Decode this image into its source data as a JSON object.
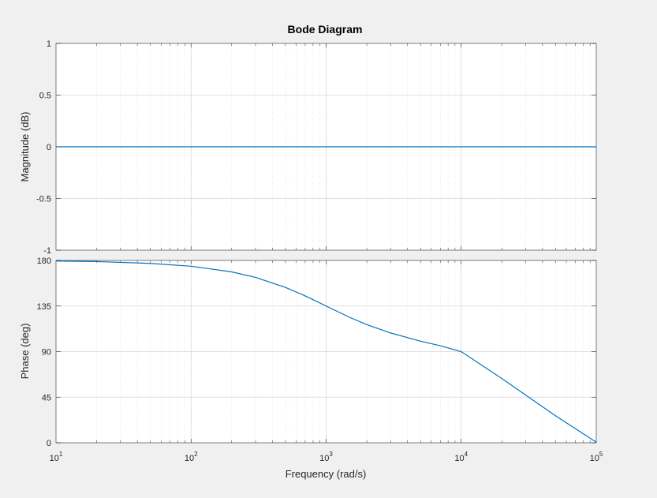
{
  "chart_data": {
    "type": "line",
    "title": "Bode Diagram",
    "xlabel": "Frequency  (rad/s)",
    "xscale": "log",
    "xlim": [
      10,
      100000
    ],
    "xticks": [
      {
        "base": "10",
        "exp": "1"
      },
      {
        "base": "10",
        "exp": "2"
      },
      {
        "base": "10",
        "exp": "3"
      },
      {
        "base": "10",
        "exp": "4"
      },
      {
        "base": "10",
        "exp": "5"
      }
    ],
    "grid": true,
    "line_color": "#0072bd",
    "subplots": [
      {
        "name": "magnitude",
        "ylabel": "Magnitude (dB)",
        "ylim": [
          -1,
          1
        ],
        "yticks": [
          "1",
          "0.5",
          "0",
          "-0.5",
          "-1"
        ],
        "series": {
          "x": [
            10,
            100,
            1000,
            10000,
            100000
          ],
          "y": [
            0,
            0,
            0,
            0,
            0
          ]
        }
      },
      {
        "name": "phase",
        "ylabel": "Phase (deg)",
        "ylim": [
          0,
          180
        ],
        "yticks": [
          "180",
          "135",
          "90",
          "45",
          "0"
        ],
        "series": {
          "x": [
            10,
            20,
            50,
            100,
            200,
            300,
            500,
            700,
            1000,
            1500,
            2000,
            3000,
            5000,
            7000,
            10000,
            20000,
            50000,
            100000
          ],
          "y": [
            179.4,
            178.9,
            177.1,
            174.3,
            168.7,
            163.3,
            153.4,
            145.0,
            135.0,
            123.7,
            116.6,
            108.4,
            100.3,
            95.8,
            90.0,
            63.4,
            26.6,
            0.6
          ]
        }
      }
    ]
  }
}
